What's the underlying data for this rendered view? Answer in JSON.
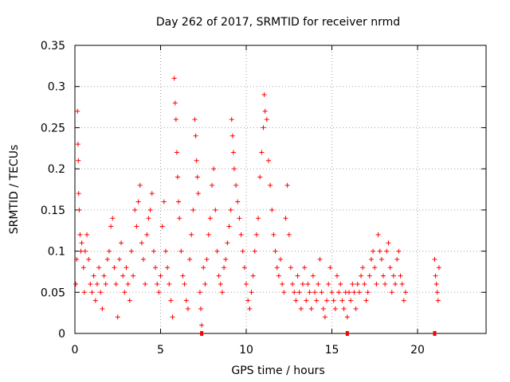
{
  "chart_data": {
    "type": "scatter",
    "title": "Day 262 of 2017, SRMTID for receiver nrmd",
    "xlabel": "GPS time / hours",
    "ylabel": "SRMTID / TECUs",
    "xlim": [
      0,
      24
    ],
    "ylim": [
      0,
      0.35
    ],
    "x_ticks": [
      0,
      5,
      10,
      15,
      20
    ],
    "x_tick_labels": [
      "0",
      "5",
      "10",
      "15",
      "20"
    ],
    "y_ticks": [
      0,
      0.05,
      0.1,
      0.15,
      0.2,
      0.25,
      0.3,
      0.35
    ],
    "y_tick_labels": [
      "0",
      "0.05",
      "0.1",
      "0.15",
      "0.2",
      "0.25",
      "0.3",
      "0.35"
    ],
    "grid": true,
    "marker": "plus",
    "color": "#ff0000",
    "gap_markers_x": [
      7.4,
      15.9,
      21.0
    ],
    "series": [
      {
        "name": "SRMTID",
        "points": [
          [
            0.05,
            0.06
          ],
          [
            0.1,
            0.09
          ],
          [
            0.15,
            0.27
          ],
          [
            0.18,
            0.23
          ],
          [
            0.2,
            0.21
          ],
          [
            0.22,
            0.17
          ],
          [
            0.25,
            0.15
          ],
          [
            0.3,
            0.12
          ],
          [
            0.35,
            0.1
          ],
          [
            0.4,
            0.11
          ],
          [
            0.5,
            0.08
          ],
          [
            0.55,
            0.05
          ],
          [
            0.6,
            0.1
          ],
          [
            0.7,
            0.12
          ],
          [
            0.8,
            0.09
          ],
          [
            0.9,
            0.06
          ],
          [
            1.0,
            0.05
          ],
          [
            1.1,
            0.07
          ],
          [
            1.2,
            0.04
          ],
          [
            1.3,
            0.06
          ],
          [
            1.4,
            0.08
          ],
          [
            1.5,
            0.05
          ],
          [
            1.6,
            0.03
          ],
          [
            1.7,
            0.07
          ],
          [
            1.8,
            0.06
          ],
          [
            1.9,
            0.09
          ],
          [
            2.0,
            0.1
          ],
          [
            2.1,
            0.13
          ],
          [
            2.2,
            0.14
          ],
          [
            2.3,
            0.08
          ],
          [
            2.4,
            0.06
          ],
          [
            2.5,
            0.02
          ],
          [
            2.6,
            0.09
          ],
          [
            2.7,
            0.11
          ],
          [
            2.8,
            0.07
          ],
          [
            2.9,
            0.05
          ],
          [
            3.0,
            0.08
          ],
          [
            3.1,
            0.06
          ],
          [
            3.2,
            0.04
          ],
          [
            3.3,
            0.1
          ],
          [
            3.4,
            0.07
          ],
          [
            3.5,
            0.15
          ],
          [
            3.6,
            0.13
          ],
          [
            3.7,
            0.16
          ],
          [
            3.8,
            0.18
          ],
          [
            3.9,
            0.11
          ],
          [
            4.0,
            0.09
          ],
          [
            4.1,
            0.06
          ],
          [
            4.2,
            0.12
          ],
          [
            4.3,
            0.14
          ],
          [
            4.4,
            0.15
          ],
          [
            4.5,
            0.17
          ],
          [
            4.6,
            0.1
          ],
          [
            4.7,
            0.08
          ],
          [
            4.8,
            0.06
          ],
          [
            4.9,
            0.05
          ],
          [
            5.0,
            0.07
          ],
          [
            5.1,
            0.13
          ],
          [
            5.2,
            0.16
          ],
          [
            5.3,
            0.1
          ],
          [
            5.4,
            0.08
          ],
          [
            5.5,
            0.06
          ],
          [
            5.6,
            0.04
          ],
          [
            5.7,
            0.02
          ],
          [
            5.8,
            0.31
          ],
          [
            5.85,
            0.28
          ],
          [
            5.9,
            0.26
          ],
          [
            5.95,
            0.22
          ],
          [
            6.0,
            0.19
          ],
          [
            6.05,
            0.16
          ],
          [
            6.1,
            0.14
          ],
          [
            6.2,
            0.1
          ],
          [
            6.3,
            0.07
          ],
          [
            6.4,
            0.06
          ],
          [
            6.5,
            0.04
          ],
          [
            6.6,
            0.03
          ],
          [
            6.7,
            0.09
          ],
          [
            6.8,
            0.12
          ],
          [
            6.9,
            0.15
          ],
          [
            7.0,
            0.26
          ],
          [
            7.05,
            0.24
          ],
          [
            7.1,
            0.21
          ],
          [
            7.15,
            0.19
          ],
          [
            7.2,
            0.17
          ],
          [
            7.3,
            0.05
          ],
          [
            7.35,
            0.03
          ],
          [
            7.4,
            0.01
          ],
          [
            7.5,
            0.08
          ],
          [
            7.6,
            0.06
          ],
          [
            7.7,
            0.09
          ],
          [
            7.8,
            0.12
          ],
          [
            7.9,
            0.14
          ],
          [
            8.0,
            0.18
          ],
          [
            8.1,
            0.2
          ],
          [
            8.2,
            0.15
          ],
          [
            8.3,
            0.1
          ],
          [
            8.4,
            0.07
          ],
          [
            8.5,
            0.06
          ],
          [
            8.6,
            0.05
          ],
          [
            8.7,
            0.08
          ],
          [
            8.8,
            0.09
          ],
          [
            8.9,
            0.11
          ],
          [
            9.0,
            0.13
          ],
          [
            9.1,
            0.15
          ],
          [
            9.15,
            0.26
          ],
          [
            9.2,
            0.24
          ],
          [
            9.25,
            0.22
          ],
          [
            9.3,
            0.2
          ],
          [
            9.4,
            0.18
          ],
          [
            9.5,
            0.16
          ],
          [
            9.6,
            0.14
          ],
          [
            9.7,
            0.12
          ],
          [
            9.8,
            0.1
          ],
          [
            9.9,
            0.08
          ],
          [
            10.0,
            0.06
          ],
          [
            10.1,
            0.04
          ],
          [
            10.2,
            0.03
          ],
          [
            10.3,
            0.05
          ],
          [
            10.4,
            0.07
          ],
          [
            10.5,
            0.1
          ],
          [
            10.6,
            0.12
          ],
          [
            10.7,
            0.14
          ],
          [
            10.8,
            0.19
          ],
          [
            10.9,
            0.22
          ],
          [
            11.0,
            0.25
          ],
          [
            11.05,
            0.29
          ],
          [
            11.1,
            0.27
          ],
          [
            11.2,
            0.26
          ],
          [
            11.3,
            0.21
          ],
          [
            11.4,
            0.18
          ],
          [
            11.5,
            0.15
          ],
          [
            11.6,
            0.12
          ],
          [
            11.7,
            0.1
          ],
          [
            11.8,
            0.08
          ],
          [
            11.9,
            0.07
          ],
          [
            12.0,
            0.09
          ],
          [
            12.1,
            0.06
          ],
          [
            12.2,
            0.05
          ],
          [
            12.3,
            0.14
          ],
          [
            12.4,
            0.18
          ],
          [
            12.5,
            0.12
          ],
          [
            12.6,
            0.08
          ],
          [
            12.7,
            0.06
          ],
          [
            12.8,
            0.05
          ],
          [
            12.9,
            0.04
          ],
          [
            13.0,
            0.07
          ],
          [
            13.1,
            0.05
          ],
          [
            13.2,
            0.03
          ],
          [
            13.3,
            0.06
          ],
          [
            13.4,
            0.08
          ],
          [
            13.5,
            0.04
          ],
          [
            13.6,
            0.06
          ],
          [
            13.7,
            0.05
          ],
          [
            13.8,
            0.03
          ],
          [
            13.9,
            0.07
          ],
          [
            14.0,
            0.05
          ],
          [
            14.1,
            0.04
          ],
          [
            14.2,
            0.06
          ],
          [
            14.3,
            0.09
          ],
          [
            14.4,
            0.05
          ],
          [
            14.5,
            0.03
          ],
          [
            14.6,
            0.02
          ],
          [
            14.7,
            0.04
          ],
          [
            14.8,
            0.06
          ],
          [
            14.9,
            0.08
          ],
          [
            15.0,
            0.05
          ],
          [
            15.1,
            0.04
          ],
          [
            15.2,
            0.03
          ],
          [
            15.3,
            0.07
          ],
          [
            15.4,
            0.05
          ],
          [
            15.5,
            0.06
          ],
          [
            15.6,
            0.04
          ],
          [
            15.7,
            0.03
          ],
          [
            15.8,
            0.05
          ],
          [
            15.9,
            0.02
          ],
          [
            16.0,
            0.05
          ],
          [
            16.1,
            0.04
          ],
          [
            16.2,
            0.06
          ],
          [
            16.3,
            0.05
          ],
          [
            16.4,
            0.03
          ],
          [
            16.5,
            0.06
          ],
          [
            16.6,
            0.05
          ],
          [
            16.7,
            0.07
          ],
          [
            16.8,
            0.08
          ],
          [
            16.9,
            0.06
          ],
          [
            17.0,
            0.04
          ],
          [
            17.1,
            0.05
          ],
          [
            17.2,
            0.07
          ],
          [
            17.3,
            0.09
          ],
          [
            17.4,
            0.1
          ],
          [
            17.5,
            0.08
          ],
          [
            17.6,
            0.06
          ],
          [
            17.7,
            0.12
          ],
          [
            17.8,
            0.1
          ],
          [
            17.9,
            0.09
          ],
          [
            18.0,
            0.07
          ],
          [
            18.1,
            0.06
          ],
          [
            18.2,
            0.1
          ],
          [
            18.3,
            0.11
          ],
          [
            18.4,
            0.08
          ],
          [
            18.5,
            0.05
          ],
          [
            18.6,
            0.07
          ],
          [
            18.7,
            0.06
          ],
          [
            18.8,
            0.09
          ],
          [
            18.9,
            0.1
          ],
          [
            19.0,
            0.07
          ],
          [
            19.1,
            0.06
          ],
          [
            19.2,
            0.04
          ],
          [
            19.3,
            0.05
          ],
          [
            21.0,
            0.09
          ],
          [
            21.05,
            0.07
          ],
          [
            21.1,
            0.06
          ],
          [
            21.15,
            0.05
          ],
          [
            21.2,
            0.04
          ],
          [
            21.25,
            0.08
          ]
        ]
      }
    ]
  }
}
